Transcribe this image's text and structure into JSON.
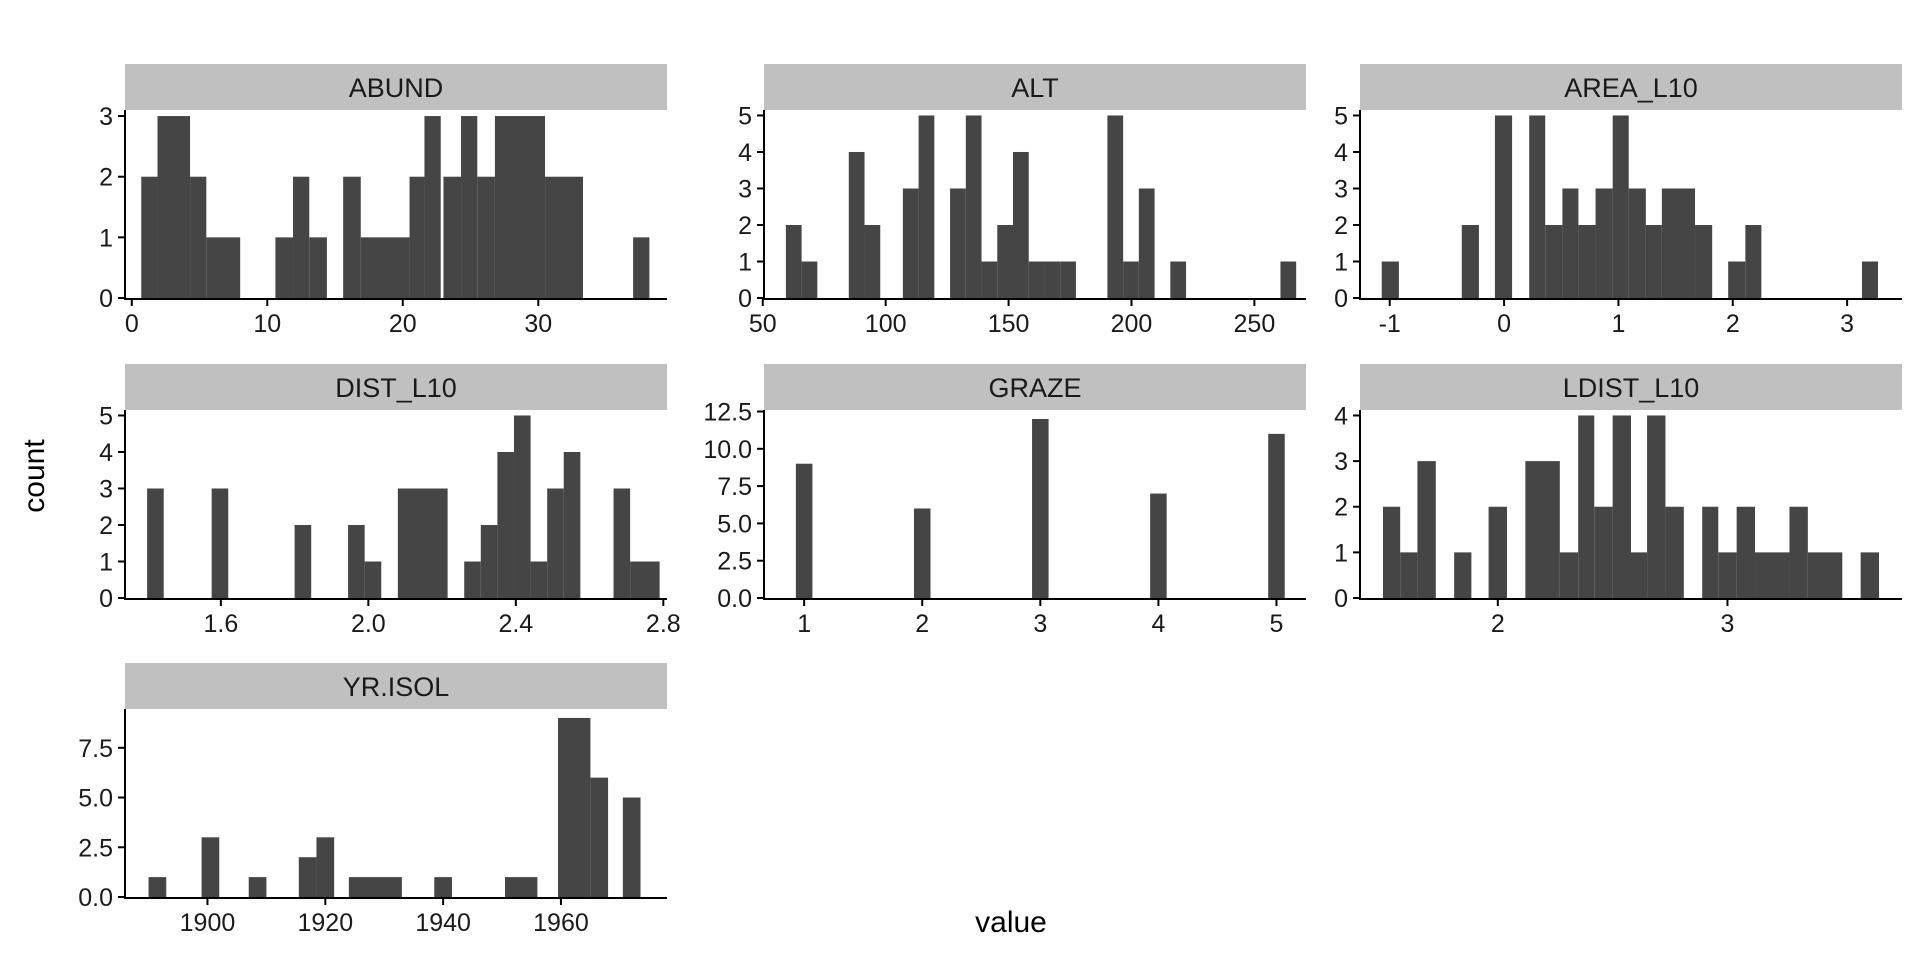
{
  "figure": {
    "xlabel": "value",
    "ylabel": "count",
    "colors": {
      "bar": "#454545",
      "strip": "#c0c0c0",
      "axis": "#000000",
      "text": "#1a1a1a",
      "background": "#ffffff"
    }
  },
  "chart_data": [
    {
      "type": "bar",
      "title": "ABUND",
      "xlim": [
        -0.5,
        39.5
      ],
      "ylim": [
        0,
        3.1
      ],
      "xticks": [
        0,
        10,
        20,
        30
      ],
      "xtick_labels": [
        "0",
        "10",
        "20",
        "30"
      ],
      "yticks": [
        0,
        1,
        2,
        3
      ],
      "ytick_labels": [
        "0",
        "1",
        "2",
        "3"
      ],
      "bins": [
        {
          "x0": 0.7,
          "x1": 1.9,
          "count": 2
        },
        {
          "x0": 1.9,
          "x1": 4.3,
          "count": 3
        },
        {
          "x0": 4.3,
          "x1": 5.5,
          "count": 2
        },
        {
          "x0": 5.5,
          "x1": 8.0,
          "count": 1
        },
        {
          "x0": 10.6,
          "x1": 11.9,
          "count": 1
        },
        {
          "x0": 11.9,
          "x1": 13.1,
          "count": 2
        },
        {
          "x0": 13.1,
          "x1": 14.4,
          "count": 1
        },
        {
          "x0": 15.6,
          "x1": 16.9,
          "count": 2
        },
        {
          "x0": 16.9,
          "x1": 20.5,
          "count": 1
        },
        {
          "x0": 20.5,
          "x1": 21.6,
          "count": 2
        },
        {
          "x0": 21.6,
          "x1": 22.8,
          "count": 3
        },
        {
          "x0": 23.0,
          "x1": 24.3,
          "count": 2
        },
        {
          "x0": 24.3,
          "x1": 25.5,
          "count": 3
        },
        {
          "x0": 25.5,
          "x1": 26.8,
          "count": 2
        },
        {
          "x0": 26.8,
          "x1": 30.5,
          "count": 3
        },
        {
          "x0": 30.5,
          "x1": 33.3,
          "count": 2
        },
        {
          "x0": 37.0,
          "x1": 38.2,
          "count": 1
        }
      ]
    },
    {
      "type": "bar",
      "title": "ALT",
      "xlim": [
        50.5,
        271
      ],
      "ylim": [
        0,
        5.15
      ],
      "xticks": [
        50,
        100,
        150,
        200,
        250
      ],
      "xtick_labels": [
        "50",
        "100",
        "150",
        "200",
        "250"
      ],
      "yticks": [
        0,
        1,
        2,
        3,
        4,
        5
      ],
      "ytick_labels": [
        "0",
        "1",
        "2",
        "3",
        "4",
        "5"
      ],
      "bins": [
        {
          "x0": 59.4,
          "x1": 65.8,
          "count": 2
        },
        {
          "x0": 65.8,
          "x1": 72.2,
          "count": 1
        },
        {
          "x0": 85.0,
          "x1": 91.4,
          "count": 4
        },
        {
          "x0": 91.4,
          "x1": 97.8,
          "count": 2
        },
        {
          "x0": 107.0,
          "x1": 113.4,
          "count": 3
        },
        {
          "x0": 113.4,
          "x1": 119.8,
          "count": 5
        },
        {
          "x0": 126.2,
          "x1": 132.6,
          "count": 3
        },
        {
          "x0": 132.6,
          "x1": 139.0,
          "count": 5
        },
        {
          "x0": 139.0,
          "x1": 145.4,
          "count": 1
        },
        {
          "x0": 145.4,
          "x1": 151.8,
          "count": 2
        },
        {
          "x0": 151.8,
          "x1": 158.2,
          "count": 4
        },
        {
          "x0": 158.2,
          "x1": 164.6,
          "count": 1
        },
        {
          "x0": 164.6,
          "x1": 171.0,
          "count": 1
        },
        {
          "x0": 171.0,
          "x1": 177.4,
          "count": 1
        },
        {
          "x0": 190.2,
          "x1": 196.6,
          "count": 5
        },
        {
          "x0": 196.6,
          "x1": 203.0,
          "count": 1
        },
        {
          "x0": 203.0,
          "x1": 209.4,
          "count": 3
        },
        {
          "x0": 215.8,
          "x1": 222.2,
          "count": 1
        },
        {
          "x0": 260.6,
          "x1": 267.0,
          "count": 1
        }
      ]
    },
    {
      "type": "bar",
      "title": "AREA_L10",
      "xlim": [
        -1.26,
        3.48
      ],
      "ylim": [
        0,
        5.15
      ],
      "xticks": [
        -1,
        0,
        1,
        2,
        3
      ],
      "xtick_labels": [
        "-1",
        "0",
        "1",
        "2",
        "3"
      ],
      "yticks": [
        0,
        1,
        2,
        3,
        4,
        5
      ],
      "ytick_labels": [
        "0",
        "1",
        "2",
        "3",
        "4",
        "5"
      ],
      "bins": [
        {
          "x0": -1.07,
          "x1": -0.92,
          "count": 1
        },
        {
          "x0": -0.37,
          "x1": -0.22,
          "count": 2
        },
        {
          "x0": -0.08,
          "x1": 0.07,
          "count": 5
        },
        {
          "x0": 0.22,
          "x1": 0.36,
          "count": 5
        },
        {
          "x0": 0.36,
          "x1": 0.51,
          "count": 2
        },
        {
          "x0": 0.51,
          "x1": 0.65,
          "count": 3
        },
        {
          "x0": 0.65,
          "x1": 0.8,
          "count": 2
        },
        {
          "x0": 0.8,
          "x1": 0.95,
          "count": 3
        },
        {
          "x0": 0.95,
          "x1": 1.09,
          "count": 5
        },
        {
          "x0": 1.09,
          "x1": 1.24,
          "count": 3
        },
        {
          "x0": 1.24,
          "x1": 1.38,
          "count": 2
        },
        {
          "x0": 1.38,
          "x1": 1.67,
          "count": 3
        },
        {
          "x0": 1.67,
          "x1": 1.82,
          "count": 2
        },
        {
          "x0": 1.96,
          "x1": 2.11,
          "count": 1
        },
        {
          "x0": 2.11,
          "x1": 2.25,
          "count": 2
        },
        {
          "x0": 3.13,
          "x1": 3.27,
          "count": 1
        }
      ]
    },
    {
      "type": "bar",
      "title": "DIST_L10",
      "xlim": [
        1.34,
        2.81
      ],
      "ylim": [
        0,
        5.15
      ],
      "xticks": [
        1.6,
        2.0,
        2.4,
        2.8
      ],
      "xtick_labels": [
        "1.6",
        "2.0",
        "2.4",
        "2.8"
      ],
      "yticks": [
        0,
        1,
        2,
        3,
        4,
        5
      ],
      "ytick_labels": [
        "0",
        "1",
        "2",
        "3",
        "4",
        "5"
      ],
      "bins": [
        {
          "x0": 1.4,
          "x1": 1.445,
          "count": 3
        },
        {
          "x0": 1.575,
          "x1": 1.62,
          "count": 3
        },
        {
          "x0": 1.8,
          "x1": 1.845,
          "count": 2
        },
        {
          "x0": 1.945,
          "x1": 1.99,
          "count": 2
        },
        {
          "x0": 1.99,
          "x1": 2.035,
          "count": 1
        },
        {
          "x0": 2.08,
          "x1": 2.215,
          "count": 3
        },
        {
          "x0": 2.26,
          "x1": 2.305,
          "count": 1
        },
        {
          "x0": 2.305,
          "x1": 2.35,
          "count": 2
        },
        {
          "x0": 2.35,
          "x1": 2.395,
          "count": 4
        },
        {
          "x0": 2.395,
          "x1": 2.44,
          "count": 5
        },
        {
          "x0": 2.44,
          "x1": 2.485,
          "count": 1
        },
        {
          "x0": 2.485,
          "x1": 2.53,
          "count": 3
        },
        {
          "x0": 2.53,
          "x1": 2.575,
          "count": 4
        },
        {
          "x0": 2.665,
          "x1": 2.71,
          "count": 3
        },
        {
          "x0": 2.71,
          "x1": 2.79,
          "count": 1
        }
      ]
    },
    {
      "type": "bar",
      "title": "GRAZE",
      "xlim": [
        0.66,
        5.25
      ],
      "ylim": [
        0,
        12.6
      ],
      "xticks": [
        1,
        2,
        3,
        4,
        5
      ],
      "xtick_labels": [
        "1",
        "2",
        "3",
        "4",
        "5"
      ],
      "yticks": [
        0,
        2.5,
        5,
        7.5,
        10,
        12.5
      ],
      "ytick_labels": [
        "0.0",
        "2.5",
        "5.0",
        "7.5",
        "10.0",
        "12.5"
      ],
      "bins": [
        {
          "x0": 0.93,
          "x1": 1.07,
          "count": 9
        },
        {
          "x0": 1.93,
          "x1": 2.07,
          "count": 6
        },
        {
          "x0": 2.93,
          "x1": 3.07,
          "count": 12
        },
        {
          "x0": 3.93,
          "x1": 4.07,
          "count": 7
        },
        {
          "x0": 4.93,
          "x1": 5.07,
          "count": 11
        }
      ]
    },
    {
      "type": "bar",
      "title": "LDIST_L10",
      "xlim": [
        1.4,
        3.76
      ],
      "ylim": [
        0,
        4.12
      ],
      "xticks": [
        2,
        3
      ],
      "xtick_labels": [
        "2",
        "3"
      ],
      "yticks": [
        0,
        1,
        2,
        3,
        4
      ],
      "ytick_labels": [
        "0",
        "1",
        "2",
        "3",
        "4"
      ],
      "bins": [
        {
          "x0": 1.5,
          "x1": 1.575,
          "count": 2
        },
        {
          "x0": 1.575,
          "x1": 1.65,
          "count": 1
        },
        {
          "x0": 1.65,
          "x1": 1.73,
          "count": 3
        },
        {
          "x0": 1.81,
          "x1": 1.885,
          "count": 1
        },
        {
          "x0": 1.96,
          "x1": 2.04,
          "count": 2
        },
        {
          "x0": 2.12,
          "x1": 2.27,
          "count": 3
        },
        {
          "x0": 2.27,
          "x1": 2.35,
          "count": 1
        },
        {
          "x0": 2.35,
          "x1": 2.42,
          "count": 4
        },
        {
          "x0": 2.42,
          "x1": 2.5,
          "count": 2
        },
        {
          "x0": 2.5,
          "x1": 2.58,
          "count": 4
        },
        {
          "x0": 2.58,
          "x1": 2.65,
          "count": 1
        },
        {
          "x0": 2.65,
          "x1": 2.73,
          "count": 4
        },
        {
          "x0": 2.73,
          "x1": 2.81,
          "count": 2
        },
        {
          "x0": 2.89,
          "x1": 2.96,
          "count": 2
        },
        {
          "x0": 2.96,
          "x1": 3.04,
          "count": 1
        },
        {
          "x0": 3.04,
          "x1": 3.12,
          "count": 2
        },
        {
          "x0": 3.12,
          "x1": 3.27,
          "count": 1
        },
        {
          "x0": 3.27,
          "x1": 3.35,
          "count": 2
        },
        {
          "x0": 3.35,
          "x1": 3.5,
          "count": 1
        },
        {
          "x0": 3.58,
          "x1": 3.66,
          "count": 1
        }
      ]
    },
    {
      "type": "bar",
      "title": "YR.ISOL",
      "xlim": [
        1886,
        1978
      ],
      "ylim": [
        0,
        9.45
      ],
      "xticks": [
        1900,
        1920,
        1940,
        1960
      ],
      "xtick_labels": [
        "1900",
        "1920",
        "1940",
        "1960"
      ],
      "yticks": [
        0,
        2.5,
        5,
        7.5
      ],
      "ytick_labels": [
        "0.0",
        "2.5",
        "5.0",
        "7.5"
      ],
      "bins": [
        {
          "x0": 1890,
          "x1": 1893,
          "count": 1
        },
        {
          "x0": 1899,
          "x1": 1902,
          "count": 3
        },
        {
          "x0": 1907,
          "x1": 1910,
          "count": 1
        },
        {
          "x0": 1915.5,
          "x1": 1918.5,
          "count": 2
        },
        {
          "x0": 1918.5,
          "x1": 1921.5,
          "count": 3
        },
        {
          "x0": 1924,
          "x1": 1933,
          "count": 1
        },
        {
          "x0": 1938.5,
          "x1": 1941.5,
          "count": 1
        },
        {
          "x0": 1950.5,
          "x1": 1956,
          "count": 1
        },
        {
          "x0": 1959.5,
          "x1": 1965,
          "count": 9
        },
        {
          "x0": 1965,
          "x1": 1968,
          "count": 6
        },
        {
          "x0": 1970.5,
          "x1": 1973.5,
          "count": 5
        }
      ]
    }
  ]
}
